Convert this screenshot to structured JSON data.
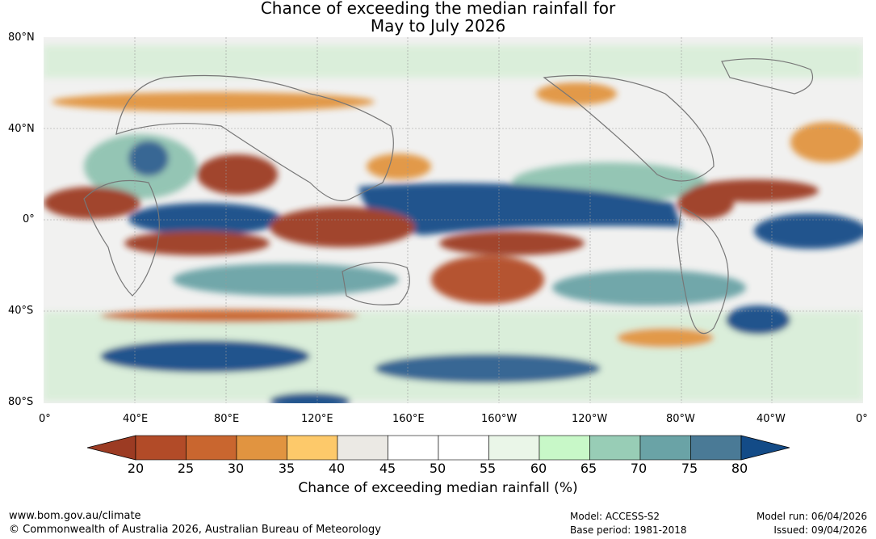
{
  "title": {
    "line1": "Chance of exceeding the median rainfall for",
    "line2": "May to July 2026"
  },
  "axes": {
    "lat_labels": [
      "80°N",
      "40°N",
      "0°",
      "40°S",
      "80°S"
    ],
    "lon_labels": [
      "0°",
      "40°E",
      "80°E",
      "120°E",
      "160°E",
      "160°W",
      "120°W",
      "80°W",
      "40°W",
      "0°"
    ]
  },
  "colorbar": {
    "ticks": [
      "20",
      "25",
      "30",
      "35",
      "40",
      "45",
      "50",
      "55",
      "60",
      "65",
      "70",
      "75",
      "80"
    ],
    "colors": [
      "#9c3b23",
      "#b24b28",
      "#c9662f",
      "#e19440",
      "#fdc96a",
      "#ebe9e4",
      "#ffffff",
      "#ffffff",
      "#eaf6e8",
      "#c8f8c8",
      "#98cdb6",
      "#6aa3a6",
      "#4a7a96",
      "#134b87"
    ],
    "label": "Chance of exceeding median rainfall (%)"
  },
  "footer": {
    "url": "www.bom.gov.au/climate",
    "copyright": "© Commonwealth of Australia 2026, Australian Bureau of Meteorology",
    "model": "Model: ACCESS-S2",
    "base_period": "Base period: 1981-2018",
    "model_run": "Model run: 06/04/2026",
    "issued": "Issued: 09/04/2026"
  }
}
